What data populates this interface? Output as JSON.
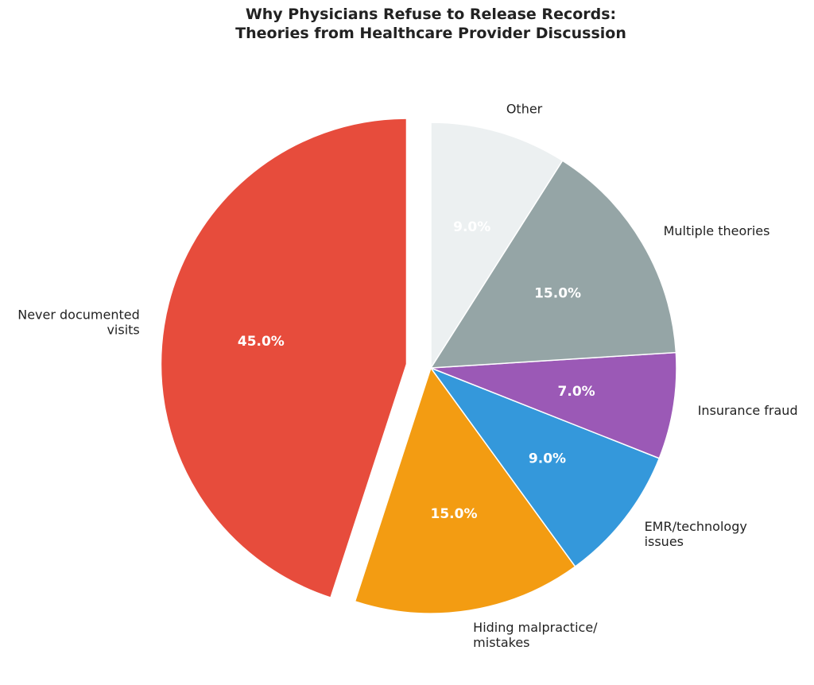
{
  "chart_data": {
    "type": "pie",
    "title": "Why Physicians Refuse to Release Records:\nTheories from Healthcare Provider Discussion",
    "title_lines": [
      "Why Physicians Refuse to Release Records:",
      "Theories from Healthcare Provider Discussion"
    ],
    "start_angle": 90,
    "direction": "counterclockwise",
    "legend": "none",
    "slices": [
      {
        "label": "Never documented\nvisits",
        "value": 45.0,
        "pct_label": "45.0%",
        "color": "#e74c3c",
        "explode": 0.1
      },
      {
        "label": "Hiding malpractice/\nmistakes",
        "value": 15.0,
        "pct_label": "15.0%",
        "color": "#f39c12",
        "explode": 0
      },
      {
        "label": "EMR/technology\nissues",
        "value": 9.0,
        "pct_label": "9.0%",
        "color": "#3498db",
        "explode": 0
      },
      {
        "label": "Insurance fraud",
        "value": 7.0,
        "pct_label": "7.0%",
        "color": "#9b59b6",
        "explode": 0
      },
      {
        "label": "Multiple theories",
        "value": 15.0,
        "pct_label": "15.0%",
        "color": "#95a5a6",
        "explode": 0
      },
      {
        "label": "Other",
        "value": 9.0,
        "pct_label": "9.0%",
        "color": "#ecf0f1",
        "explode": 0
      }
    ],
    "categories": [
      "Never documented visits",
      "Hiding malpractice/mistakes",
      "EMR/technology issues",
      "Insurance fraud",
      "Multiple theories",
      "Other"
    ],
    "values": [
      45.0,
      15.0,
      9.0,
      7.0,
      15.0,
      9.0
    ]
  }
}
